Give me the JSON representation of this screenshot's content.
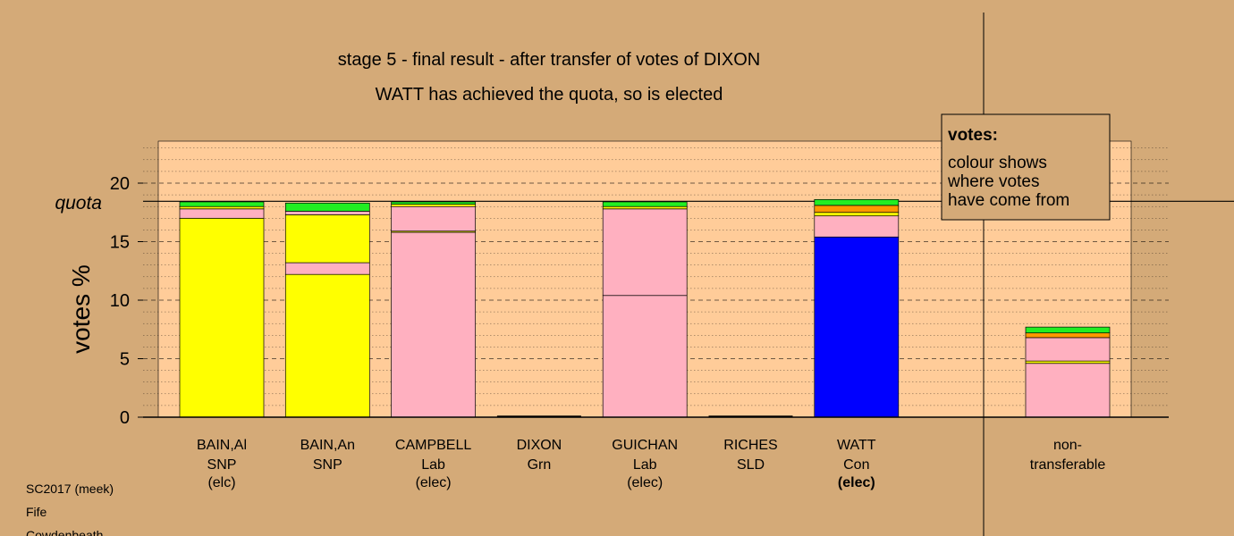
{
  "chart_data": {
    "type": "bar",
    "stacked": true,
    "title": "stage 5 - final result - after transfer of votes of DIXON",
    "subtitle": "WATT has achieved the quota, so is elected",
    "ylabel": "votes %",
    "ylim": [
      0,
      23.5
    ],
    "yticks": [
      0,
      5,
      10,
      15,
      20
    ],
    "quota": 18.45,
    "quota_label": "quota",
    "grid": true,
    "legend": {
      "title": "votes:",
      "lines": [
        "colour shows",
        "where votes",
        "have come from"
      ],
      "placement": "top-right"
    },
    "colors": {
      "SNP": "#ffff00",
      "Lab": "#ffb0c0",
      "Con": "#0000ff",
      "Grn": "#22ee22",
      "SLD": "#ff9900"
    },
    "candidates": [
      {
        "name": "BAIN,Al",
        "party": "SNP",
        "status": "(elc)",
        "status_bold": false,
        "segments": [
          {
            "color": "SNP",
            "value": 17.0
          },
          {
            "color": "Lab",
            "value": 0.8
          },
          {
            "color": "SNP",
            "value": 0.2
          },
          {
            "color": "Grn",
            "value": 0.4
          }
        ]
      },
      {
        "name": "BAIN,An",
        "party": "SNP",
        "status": "",
        "status_bold": false,
        "segments": [
          {
            "color": "SNP",
            "value": 12.2
          },
          {
            "color": "Lab",
            "value": 1.0
          },
          {
            "color": "SNP",
            "value": 4.1
          },
          {
            "color": "Lab",
            "value": 0.3
          },
          {
            "color": "Grn",
            "value": 0.7
          }
        ]
      },
      {
        "name": "CAMPBELL",
        "party": "Lab",
        "status": "(elec)",
        "status_bold": false,
        "segments": [
          {
            "color": "Lab",
            "value": 15.8
          },
          {
            "color": "SNP",
            "value": 0.1
          },
          {
            "color": "Lab",
            "value": 2.1
          },
          {
            "color": "SNP",
            "value": 0.2
          },
          {
            "color": "Grn",
            "value": 0.2
          }
        ]
      },
      {
        "name": "DIXON",
        "party": "Grn",
        "status": "",
        "status_bold": false,
        "segments": []
      },
      {
        "name": "GUICHAN",
        "party": "Lab",
        "status": "(elec)",
        "status_bold": false,
        "segments": [
          {
            "color": "Lab",
            "value": 10.4
          },
          {
            "color": "Lab",
            "value": 7.4
          },
          {
            "color": "SNP",
            "value": 0.2
          },
          {
            "color": "Grn",
            "value": 0.4
          }
        ]
      },
      {
        "name": "RICHES",
        "party": "SLD",
        "status": "",
        "status_bold": false,
        "segments": []
      },
      {
        "name": "WATT",
        "party": "Con",
        "status": "(elec)",
        "status_bold": true,
        "segments": [
          {
            "color": "Con",
            "value": 15.4
          },
          {
            "color": "Lab",
            "value": 1.8
          },
          {
            "color": "SNP",
            "value": 0.3
          },
          {
            "color": "SLD",
            "value": 0.6
          },
          {
            "color": "Grn",
            "value": 0.5
          }
        ]
      }
    ],
    "nontransferable": {
      "label_line1": "non-",
      "label_line2": "transferable",
      "segments": [
        {
          "color": "Lab",
          "value": 4.6
        },
        {
          "color": "SNP",
          "value": 0.2
        },
        {
          "color": "Lab",
          "value": 2.0
        },
        {
          "color": "SLD",
          "value": 0.4
        },
        {
          "color": "Grn",
          "value": 0.5
        }
      ]
    }
  },
  "footer": {
    "line1": "SC2017 (meek)",
    "line2": "Fife",
    "line3": "Cowdenbeath"
  }
}
